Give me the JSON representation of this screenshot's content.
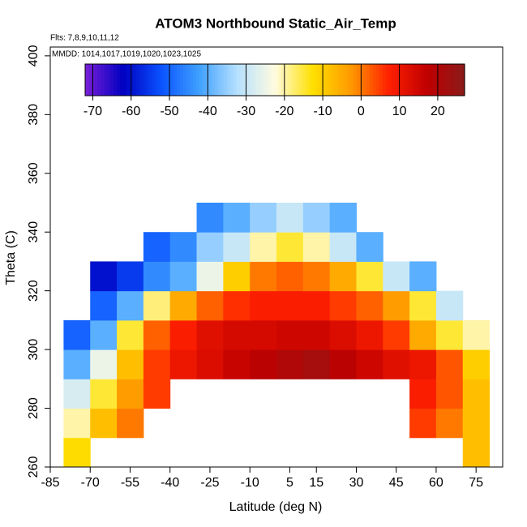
{
  "chart_data": {
    "type": "heatmap",
    "title": "ATOM3 Northbound Static_Air_Temp",
    "annotations": [
      "Flts: 7,8,9,10,11,12",
      "MMDD: 1014,1017,1019,1020,1023,1025"
    ],
    "x_label": "Latitude (deg N)",
    "y_label": "Theta (C)",
    "xlim": [
      -85,
      85
    ],
    "xticks": [
      -85,
      -70,
      -55,
      -40,
      -25,
      -10,
      5,
      15,
      30,
      45,
      60,
      75
    ],
    "ylim": [
      260,
      403
    ],
    "yticks": [
      260,
      280,
      300,
      320,
      340,
      360,
      380,
      400
    ],
    "x": [
      -75,
      -65,
      -55,
      -45,
      -35,
      -25,
      -15,
      -5,
      5,
      15,
      25,
      35,
      45,
      55,
      65,
      75
    ],
    "y": [
      265,
      275,
      285,
      295,
      305,
      315,
      325,
      335,
      345
    ],
    "z": [
      [
        -12,
        null,
        null,
        null,
        null,
        null,
        null,
        null,
        null,
        null,
        null,
        null,
        null,
        null,
        null,
        -8
      ],
      [
        -20,
        -8,
        0,
        null,
        null,
        null,
        null,
        null,
        null,
        null,
        null,
        null,
        null,
        5,
        0,
        -8
      ],
      [
        -28,
        -15,
        -3,
        5,
        null,
        null,
        null,
        null,
        null,
        null,
        null,
        null,
        null,
        8,
        3,
        -8
      ],
      [
        -40,
        -25,
        -8,
        5,
        10,
        13,
        16,
        18,
        20,
        22,
        18,
        15,
        12,
        10,
        3,
        -10
      ],
      [
        -50,
        -40,
        -15,
        2,
        8,
        12,
        14,
        14,
        15,
        15,
        13,
        10,
        5,
        -5,
        -15,
        -20
      ],
      [
        null,
        -50,
        -40,
        -18,
        -5,
        2,
        6,
        8,
        8,
        8,
        5,
        2,
        -3,
        -15,
        -30,
        null
      ],
      [
        null,
        -60,
        -55,
        -45,
        -40,
        -25,
        -10,
        0,
        2,
        0,
        -5,
        -15,
        -30,
        -40,
        null,
        null
      ],
      [
        null,
        null,
        null,
        -50,
        -45,
        -35,
        -30,
        -20,
        -15,
        -20,
        -30,
        -40,
        null,
        null,
        null,
        null
      ],
      [
        null,
        null,
        null,
        null,
        null,
        -45,
        -40,
        -35,
        -30,
        -35,
        -40,
        null,
        null,
        null,
        null,
        null
      ]
    ],
    "clim": [
      -72,
      27
    ],
    "cticks": [
      -70,
      -60,
      -50,
      -40,
      -30,
      -20,
      -10,
      0,
      10,
      20
    ],
    "colorscale": [
      "#7a1fd8",
      "#0000c0",
      "#0a52ff",
      "#3fa0ff",
      "#b5e0ff",
      "#fffbe0",
      "#ffe000",
      "#ff9a00",
      "#ff2000",
      "#c00000",
      "#8b1a1a"
    ]
  }
}
